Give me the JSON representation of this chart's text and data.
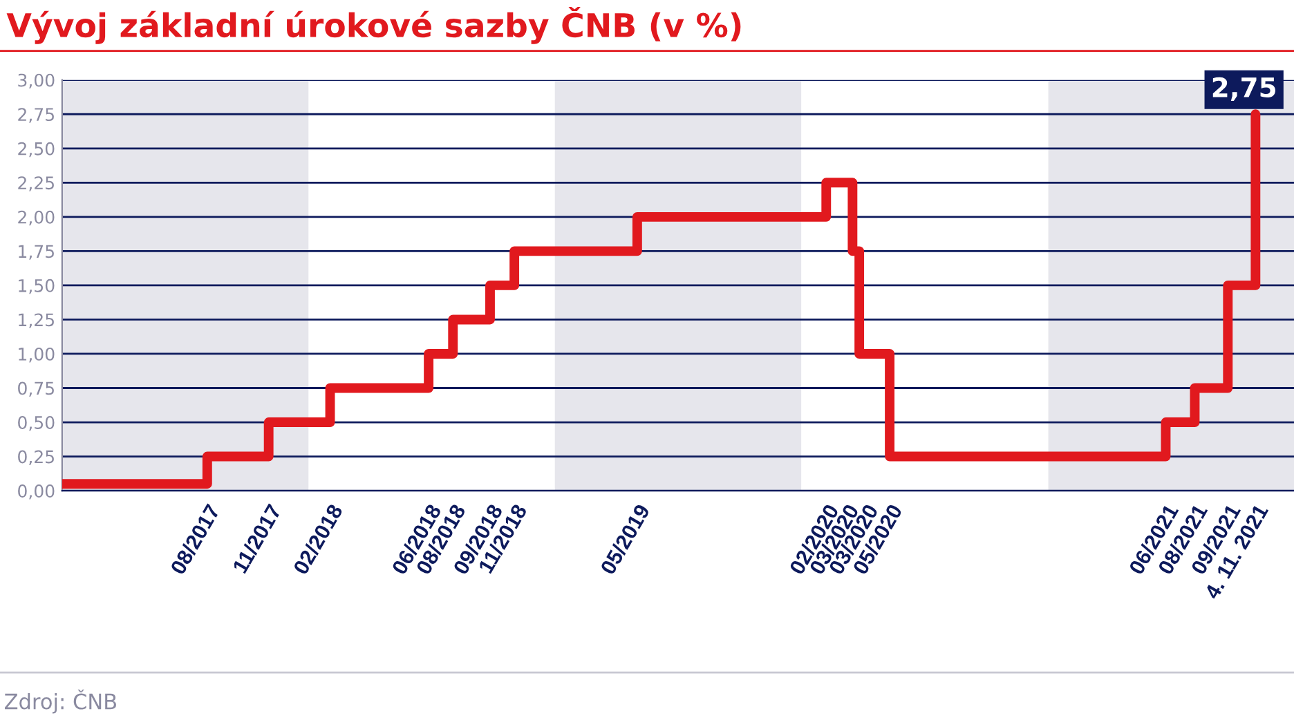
{
  "chart_data": {
    "type": "step",
    "title": "Vývoj základní úrokové sazby ČNB (v %)",
    "x": [
      "2017-01-01",
      "2017-08-04",
      "2017-11-03",
      "2018-02-02",
      "2018-06-28",
      "2018-08-03",
      "2018-09-27",
      "2018-11-02",
      "2019-05-03",
      "2020-02-07",
      "2020-03-17",
      "2020-03-27",
      "2020-05-11",
      "2021-06-24",
      "2021-08-06",
      "2021-09-24",
      "2021-11-04"
    ],
    "series": [
      {
        "color": "#e1191e",
        "values": [
          0.05,
          0.25,
          0.5,
          0.75,
          1.0,
          1.25,
          1.5,
          1.75,
          2.0,
          2.25,
          1.75,
          1.0,
          0.25,
          0.5,
          0.75,
          1.5,
          2.75
        ]
      }
    ],
    "xlim": [
      "2017-01-01",
      "2021-12-31"
    ],
    "xticks": [
      {
        "value": "2017-08-04",
        "label": "08/2017"
      },
      {
        "value": "2017-11-03",
        "label": "11/2017"
      },
      {
        "value": "2018-02-02",
        "label": "02/2018"
      },
      {
        "value": "2018-06-28",
        "label": "06/2018"
      },
      {
        "value": "2018-08-03",
        "label": "08/2018"
      },
      {
        "value": "2018-09-27",
        "label": "09/2018"
      },
      {
        "value": "2018-11-02",
        "label": "11/2018"
      },
      {
        "value": "2019-05-03",
        "label": "05/2019"
      },
      {
        "value": "2020-02-07",
        "label": "02/2020"
      },
      {
        "value": "2020-03-17",
        "label": "03/2020"
      },
      {
        "value": "2020-03-27",
        "label": "03/2020"
      },
      {
        "value": "2020-05-11",
        "label": "05/2020"
      },
      {
        "value": "2021-06-24",
        "label": "06/2021"
      },
      {
        "value": "2021-08-06",
        "label": "08/2021"
      },
      {
        "value": "2021-09-24",
        "label": "09/2021"
      },
      {
        "value": "2021-11-04",
        "label": "4. 11. 2021"
      }
    ],
    "ylim": [
      0,
      3
    ],
    "yticks": [
      {
        "value": 0,
        "label": "0,00"
      },
      {
        "value": 0.25,
        "label": "0,25"
      },
      {
        "value": 0.5,
        "label": "0,50"
      },
      {
        "value": 0.75,
        "label": "0,75"
      },
      {
        "value": 1,
        "label": "1,00"
      },
      {
        "value": 1.25,
        "label": "1,25"
      },
      {
        "value": 1.5,
        "label": "1,50"
      },
      {
        "value": 1.75,
        "label": "1,75"
      },
      {
        "value": 2,
        "label": "2,00"
      },
      {
        "value": 2.25,
        "label": "2,25"
      },
      {
        "value": 2.5,
        "label": "2,50"
      },
      {
        "value": 2.75,
        "label": "2,75"
      },
      {
        "value": 3,
        "label": "3,00"
      }
    ],
    "bands": [
      {
        "axis": "x",
        "from": "2017-01-01",
        "to": "2018-01-01",
        "color": "#e6e6ec"
      },
      {
        "axis": "x",
        "from": "2019-01-01",
        "to": "2020-01-01",
        "color": "#e6e6ec"
      },
      {
        "axis": "x",
        "from": "2021-01-01",
        "to": "2021-12-31",
        "color": "#e6e6ec"
      }
    ],
    "grid": "y",
    "line_style": "solid",
    "annotations": [
      {
        "text": "2,75",
        "x": "2021-11-04",
        "y": 2.75
      },
      "Zdroj: ČNB"
    ]
  }
}
